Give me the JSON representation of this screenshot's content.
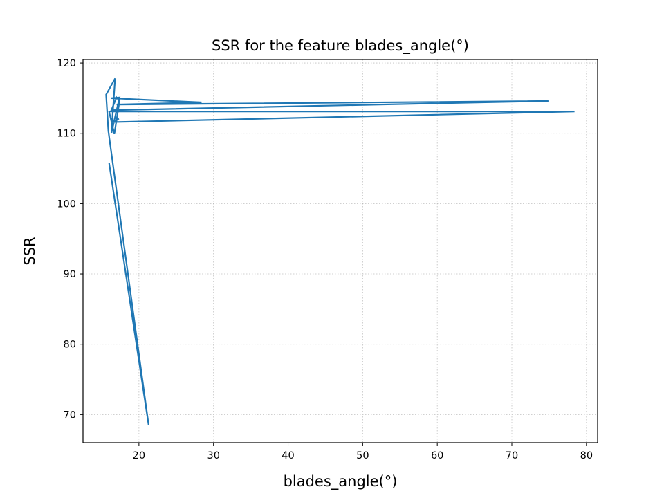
{
  "chart_data": {
    "type": "line",
    "title": "SSR for the feature blades_angle(°)",
    "xlabel": "blades_angle(°)",
    "ylabel": "SSR",
    "xlim": [
      12.5,
      81.5
    ],
    "ylim": [
      66,
      120.5
    ],
    "xticks": [
      20,
      30,
      40,
      50,
      60,
      70,
      80
    ],
    "yticks": [
      70,
      80,
      90,
      100,
      110,
      120
    ],
    "grid": true,
    "line_color": "#1f77b4",
    "series": [
      {
        "x": [
          16.0,
          21.3,
          15.9,
          15.6,
          16.8,
          16.3,
          17.4,
          16.3,
          28.4,
          17.0,
          75.0,
          16.3,
          17.0,
          17.4,
          16.7,
          16.0,
          78.4,
          16.6,
          17.3,
          16.8,
          16.2
        ],
        "y": [
          105.8,
          68.5,
          110.3,
          115.5,
          117.8,
          110.0,
          115.1,
          115.0,
          114.4,
          114.1,
          114.6,
          113.3,
          115.1,
          114.6,
          109.9,
          113.1,
          113.1,
          111.6,
          112.1,
          111.7,
          112.1
        ]
      }
    ]
  }
}
